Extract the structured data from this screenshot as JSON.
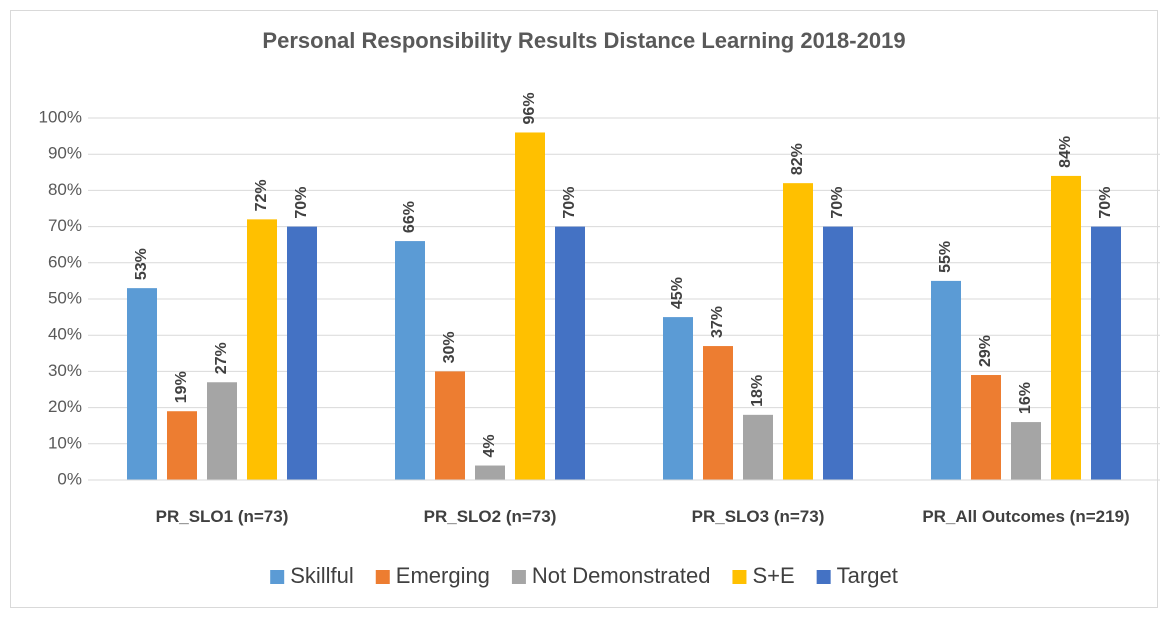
{
  "chart_data": {
    "type": "bar",
    "title": "Personal Responsibility Results Distance Learning 2018-2019",
    "categories": [
      "PR_SLO1 (n=73)",
      "PR_SLO2 (n=73)",
      "PR_SLO3 (n=73)",
      "PR_All Outcomes (n=219)"
    ],
    "series": [
      {
        "name": "Skillful",
        "color": "#5b9bd5",
        "values": [
          53,
          66,
          45,
          55
        ],
        "value_labels": [
          "53%",
          "66%",
          "45%",
          "55%"
        ]
      },
      {
        "name": "Emerging",
        "color": "#ed7d31",
        "values": [
          19,
          30,
          37,
          29
        ],
        "value_labels": [
          "19%",
          "30%",
          "37%",
          "29%"
        ]
      },
      {
        "name": "Not Demonstrated",
        "color": "#a5a5a5",
        "values": [
          27,
          4,
          18,
          16
        ],
        "value_labels": [
          "27%",
          "4%",
          "18%",
          "16%"
        ]
      },
      {
        "name": "S+E",
        "color": "#ffc000",
        "values": [
          72,
          96,
          82,
          84
        ],
        "value_labels": [
          "72%",
          "96%",
          "82%",
          "84%"
        ]
      },
      {
        "name": "Target",
        "color": "#4472c4",
        "values": [
          70,
          70,
          70,
          70
        ],
        "value_labels": [
          "70%",
          "70%",
          "70%",
          "70%"
        ]
      }
    ],
    "ylim": [
      0,
      100
    ],
    "yticks": [
      {
        "value": 0,
        "label": "0%"
      },
      {
        "value": 10,
        "label": "10%"
      },
      {
        "value": 20,
        "label": "20%"
      },
      {
        "value": 30,
        "label": "30%"
      },
      {
        "value": 40,
        "label": "40%"
      },
      {
        "value": 50,
        "label": "50%"
      },
      {
        "value": 60,
        "label": "60%"
      },
      {
        "value": 70,
        "label": "70%"
      },
      {
        "value": 80,
        "label": "80%"
      },
      {
        "value": 90,
        "label": "90%"
      },
      {
        "value": 100,
        "label": "100%"
      }
    ],
    "grid": true,
    "legend": "bottom"
  }
}
